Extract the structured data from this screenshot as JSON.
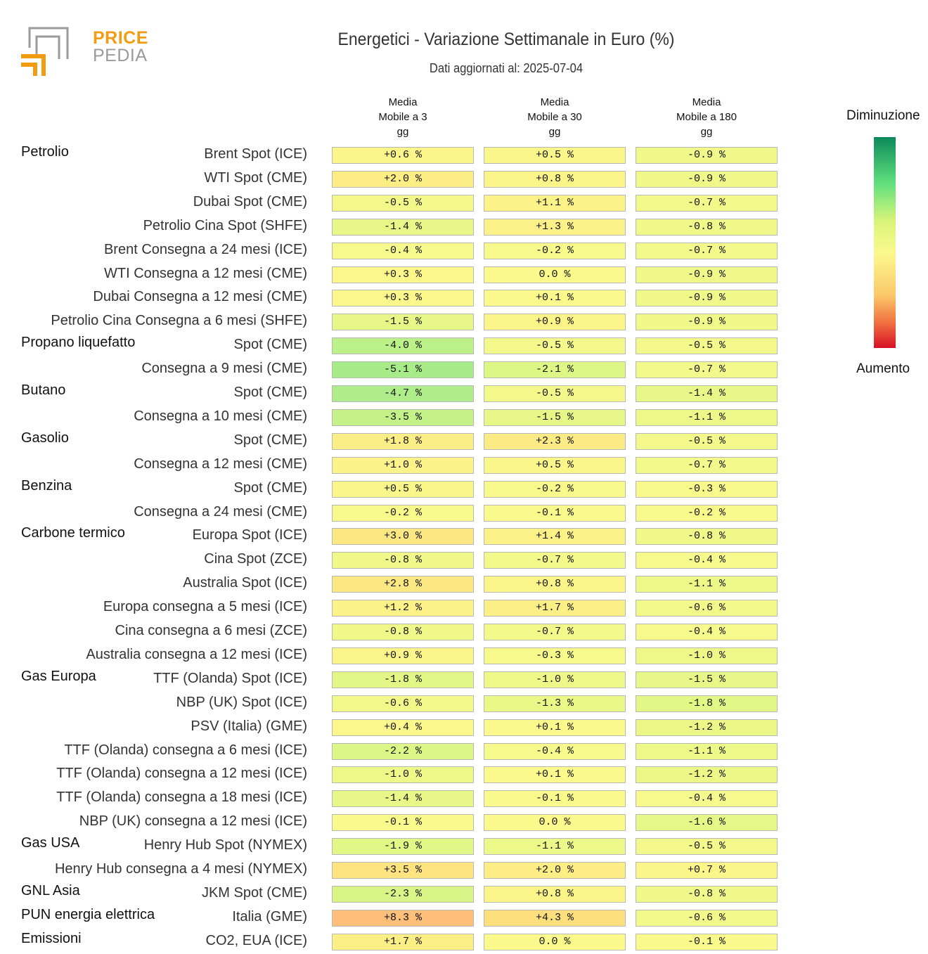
{
  "logo": {
    "word1": "PRICE",
    "word2": "PEDIA"
  },
  "colors": {
    "logo_orange": "#f39c12",
    "logo_gray": "#9a9a9a",
    "scale_top": "#0b8a5a",
    "scale_mid": "#fbf98c",
    "scale_bottom": "#d81026"
  },
  "chart_data": {
    "type": "table",
    "title": "Energetici - Variazione Settimanale in Euro (%)",
    "subtitle": "Dati aggiornati al: 2025-07-04",
    "columns": [
      "Media\nMobile a 3\ngg",
      "Media\nMobile a 30\ngg",
      "Media\nMobile a 180\ngg"
    ],
    "legend": {
      "top": "Diminuzione",
      "bottom": "Aumento"
    },
    "groups": [
      {
        "name": "Petrolio",
        "rows": [
          {
            "label": "Brent Spot (ICE)",
            "values": [
              0.6,
              0.5,
              -0.9
            ],
            "text": [
              "+0.6 %",
              "+0.5 %",
              "-0.9 %"
            ]
          },
          {
            "label": "WTI Spot (CME)",
            "values": [
              2.0,
              0.8,
              -0.9
            ],
            "text": [
              "+2.0 %",
              "+0.8 %",
              "-0.9 %"
            ]
          },
          {
            "label": "Dubai Spot (CME)",
            "values": [
              -0.5,
              1.1,
              -0.7
            ],
            "text": [
              "-0.5 %",
              "+1.1 %",
              "-0.7 %"
            ]
          },
          {
            "label": "Petrolio Cina Spot (SHFE)",
            "values": [
              -1.4,
              1.3,
              -0.8
            ],
            "text": [
              "-1.4 %",
              "+1.3 %",
              "-0.8 %"
            ]
          },
          {
            "label": "Brent Consegna a 24 mesi (ICE)",
            "values": [
              -0.4,
              -0.2,
              -0.7
            ],
            "text": [
              "-0.4 %",
              "-0.2 %",
              "-0.7 %"
            ]
          },
          {
            "label": "WTI Consegna a 12 mesi (CME)",
            "values": [
              0.3,
              0.0,
              -0.9
            ],
            "text": [
              "+0.3 %",
              "0.0 %",
              "-0.9 %"
            ]
          },
          {
            "label": "Dubai Consegna a 12 mesi (CME)",
            "values": [
              0.3,
              0.1,
              -0.9
            ],
            "text": [
              "+0.3 %",
              "+0.1 %",
              "-0.9 %"
            ]
          },
          {
            "label": "Petrolio Cina Consegna a 6 mesi (SHFE)",
            "values": [
              -1.5,
              0.9,
              -0.9
            ],
            "text": [
              "-1.5 %",
              "+0.9 %",
              "-0.9 %"
            ]
          }
        ]
      },
      {
        "name": "Propano liquefatto",
        "rows": [
          {
            "label": "Spot (CME)",
            "values": [
              -4.0,
              -0.5,
              -0.5
            ],
            "text": [
              "-4.0 %",
              "-0.5 %",
              "-0.5 %"
            ]
          },
          {
            "label": "Consegna a 9 mesi (CME)",
            "values": [
              -5.1,
              -2.1,
              -0.7
            ],
            "text": [
              "-5.1 %",
              "-2.1 %",
              "-0.7 %"
            ]
          }
        ]
      },
      {
        "name": "Butano",
        "rows": [
          {
            "label": "Spot (CME)",
            "values": [
              -4.7,
              -0.5,
              -1.4
            ],
            "text": [
              "-4.7 %",
              "-0.5 %",
              "-1.4 %"
            ]
          },
          {
            "label": "Consegna a 10 mesi (CME)",
            "values": [
              -3.5,
              -1.5,
              -1.1
            ],
            "text": [
              "-3.5 %",
              "-1.5 %",
              "-1.1 %"
            ]
          }
        ]
      },
      {
        "name": "Gasolio",
        "rows": [
          {
            "label": "Spot (CME)",
            "values": [
              1.8,
              2.3,
              -0.5
            ],
            "text": [
              "+1.8 %",
              "+2.3 %",
              "-0.5 %"
            ]
          },
          {
            "label": "Consegna a 12 mesi (CME)",
            "values": [
              1.0,
              0.5,
              -0.7
            ],
            "text": [
              "+1.0 %",
              "+0.5 %",
              "-0.7 %"
            ]
          }
        ]
      },
      {
        "name": "Benzina",
        "rows": [
          {
            "label": "Spot (CME)",
            "values": [
              0.5,
              -0.2,
              -0.3
            ],
            "text": [
              "+0.5 %",
              "-0.2 %",
              "-0.3 %"
            ]
          },
          {
            "label": "Consegna a 24 mesi (CME)",
            "values": [
              -0.2,
              -0.1,
              -0.2
            ],
            "text": [
              "-0.2 %",
              "-0.1 %",
              "-0.2 %"
            ]
          }
        ]
      },
      {
        "name": "Carbone termico",
        "rows": [
          {
            "label": "Europa Spot (ICE)",
            "values": [
              3.0,
              1.4,
              -0.8
            ],
            "text": [
              "+3.0 %",
              "+1.4 %",
              "-0.8 %"
            ]
          },
          {
            "label": "Cina Spot (ZCE)",
            "values": [
              -0.8,
              -0.7,
              -0.4
            ],
            "text": [
              "-0.8 %",
              "-0.7 %",
              "-0.4 %"
            ]
          },
          {
            "label": "Australia Spot (ICE)",
            "values": [
              2.8,
              0.8,
              -1.1
            ],
            "text": [
              "+2.8 %",
              "+0.8 %",
              "-1.1 %"
            ]
          },
          {
            "label": "Europa consegna a 5 mesi (ICE)",
            "values": [
              1.2,
              1.7,
              -0.6
            ],
            "text": [
              "+1.2 %",
              "+1.7 %",
              "-0.6 %"
            ]
          },
          {
            "label": "Cina consegna a 6 mesi (ZCE)",
            "values": [
              -0.8,
              -0.7,
              -0.4
            ],
            "text": [
              "-0.8 %",
              "-0.7 %",
              "-0.4 %"
            ]
          },
          {
            "label": "Australia consegna a 12 mesi (ICE)",
            "values": [
              0.9,
              -0.3,
              -1.0
            ],
            "text": [
              "+0.9 %",
              "-0.3 %",
              "-1.0 %"
            ]
          }
        ]
      },
      {
        "name": "Gas Europa",
        "rows": [
          {
            "label": "TTF (Olanda) Spot (ICE)",
            "values": [
              -1.8,
              -1.0,
              -1.5
            ],
            "text": [
              "-1.8 %",
              "-1.0 %",
              "-1.5 %"
            ]
          },
          {
            "label": "NBP (UK) Spot (ICE)",
            "values": [
              -0.6,
              -1.3,
              -1.8
            ],
            "text": [
              "-0.6 %",
              "-1.3 %",
              "-1.8 %"
            ]
          },
          {
            "label": "PSV (Italia) (GME)",
            "values": [
              0.4,
              0.1,
              -1.2
            ],
            "text": [
              "+0.4 %",
              "+0.1 %",
              "-1.2 %"
            ]
          },
          {
            "label": "TTF (Olanda) consegna a 6 mesi (ICE)",
            "values": [
              -2.2,
              -0.4,
              -1.1
            ],
            "text": [
              "-2.2 %",
              "-0.4 %",
              "-1.1 %"
            ]
          },
          {
            "label": "TTF (Olanda) consegna a 12 mesi (ICE)",
            "values": [
              -1.0,
              0.1,
              -1.2
            ],
            "text": [
              "-1.0 %",
              "+0.1 %",
              "-1.2 %"
            ]
          },
          {
            "label": "TTF (Olanda) consegna a 18 mesi (ICE)",
            "values": [
              -1.4,
              -0.1,
              -0.4
            ],
            "text": [
              "-1.4 %",
              "-0.1 %",
              "-0.4 %"
            ]
          },
          {
            "label": "NBP (UK) consegna a 12 mesi (ICE)",
            "values": [
              -0.1,
              0.0,
              -1.6
            ],
            "text": [
              "-0.1 %",
              "0.0 %",
              "-1.6 %"
            ]
          }
        ]
      },
      {
        "name": "Gas USA",
        "rows": [
          {
            "label": "Henry Hub Spot (NYMEX)",
            "values": [
              -1.9,
              -1.1,
              -0.5
            ],
            "text": [
              "-1.9 %",
              "-1.1 %",
              "-0.5 %"
            ]
          },
          {
            "label": "Henry Hub consegna a 4 mesi (NYMEX)",
            "values": [
              3.5,
              2.0,
              0.7
            ],
            "text": [
              "+3.5 %",
              "+2.0 %",
              "+0.7 %"
            ]
          }
        ]
      },
      {
        "name": "GNL Asia",
        "rows": [
          {
            "label": "JKM Spot (CME)",
            "values": [
              -2.3,
              0.8,
              -0.8
            ],
            "text": [
              "-2.3 %",
              "+0.8 %",
              "-0.8 %"
            ]
          }
        ]
      },
      {
        "name": "PUN energia elettrica",
        "rows": [
          {
            "label": "Italia (GME)",
            "values": [
              8.3,
              4.3,
              -0.6
            ],
            "text": [
              "+8.3 %",
              "+4.3 %",
              "-0.6 %"
            ]
          }
        ]
      },
      {
        "name": "Emissioni",
        "rows": [
          {
            "label": "CO2, EUA (ICE)",
            "values": [
              1.7,
              0.0,
              -0.1
            ],
            "text": [
              "+1.7 %",
              "0.0 %",
              "-0.1 %"
            ]
          }
        ]
      }
    ]
  }
}
